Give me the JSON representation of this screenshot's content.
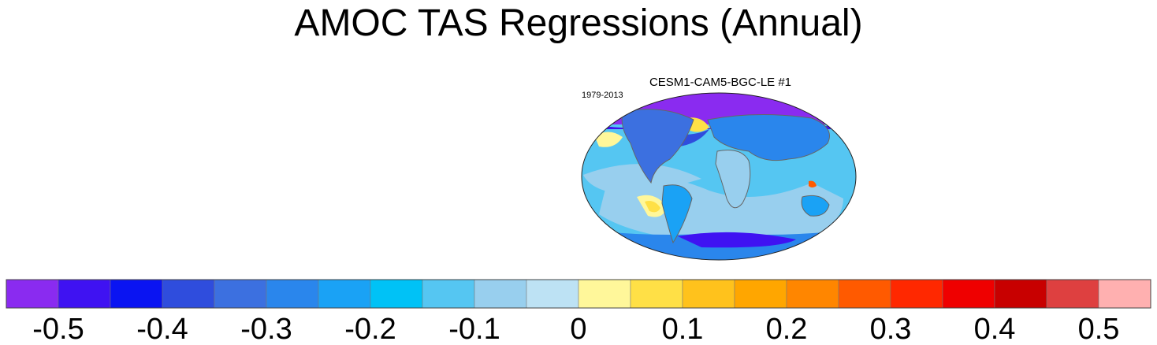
{
  "title": "AMOC TAS Regressions (Annual)",
  "panel": {
    "model": "CESM1-CAM5-BGC-LE #1",
    "period": "1979-2013"
  },
  "chart_data": {
    "type": "heatmap",
    "title": "AMOC TAS Regressions (Annual)",
    "subtitle": "CESM1-CAM5-BGC-LE #1",
    "period": "1979-2013",
    "projection": "global map (Robinson-like), surface air temperature regression field",
    "colorbar": {
      "levels": [
        -0.55,
        -0.5,
        -0.45,
        -0.4,
        -0.35,
        -0.3,
        -0.25,
        -0.2,
        -0.15,
        -0.1,
        -0.05,
        0,
        0.05,
        0.1,
        0.15,
        0.2,
        0.25,
        0.3,
        0.35,
        0.4,
        0.45,
        0.5,
        0.55
      ],
      "colors": [
        "#8a2bf0",
        "#3f12f2",
        "#0a14f2",
        "#2f4ddd",
        "#3c70e0",
        "#2a86ec",
        "#1aa2f5",
        "#00c2f6",
        "#55c6f2",
        "#98cfee",
        "#bde2f4",
        "#fff79a",
        "#ffe046",
        "#ffc21c",
        "#ffa600",
        "#ff8600",
        "#ff5a00",
        "#ff2800",
        "#ef0000",
        "#c80000",
        "#de4040",
        "#ffb0b0"
      ],
      "tick_values": [
        -0.5,
        -0.4,
        -0.3,
        -0.2,
        -0.1,
        0,
        0.1,
        0.2,
        0.3,
        0.4,
        0.5
      ],
      "tick_labels": [
        "-0.5",
        "-0.4",
        "-0.3",
        "-0.2",
        "-0.1",
        "0",
        "0.1",
        "0.2",
        "0.3",
        "0.4",
        "0.5"
      ],
      "range": [
        -0.55,
        0.55
      ]
    }
  }
}
